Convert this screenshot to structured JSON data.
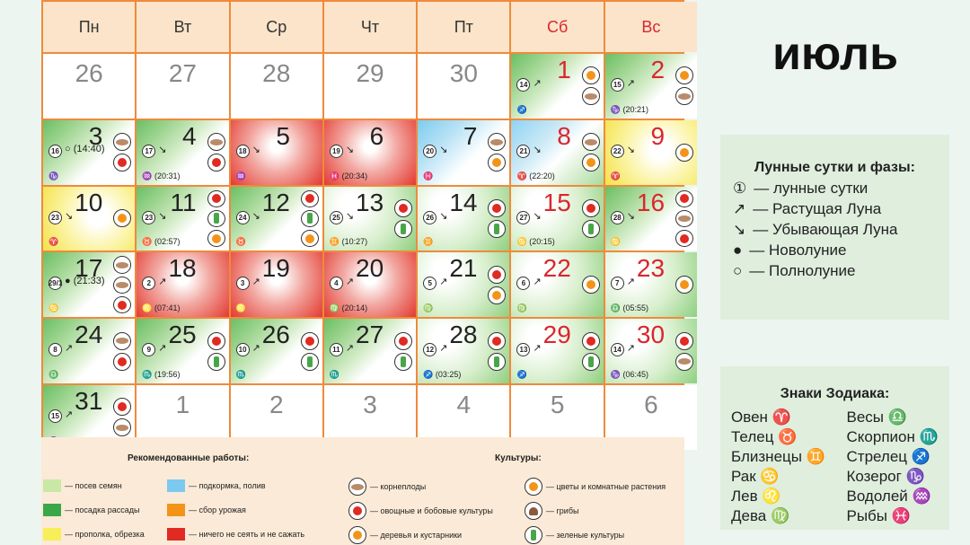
{
  "header": [
    "Пн",
    "Вт",
    "Ср",
    "Чт",
    "Пт",
    "Сб",
    "Вс"
  ],
  "month_title": "июль",
  "cells": [
    {
      "day": "26",
      "plain": true
    },
    {
      "day": "27",
      "plain": true
    },
    {
      "day": "28",
      "plain": true
    },
    {
      "day": "29",
      "plain": true
    },
    {
      "day": "30",
      "plain": true
    },
    {
      "day": "1",
      "we": true,
      "bg": "g-ltr",
      "lday": "14",
      "phase": "↗",
      "sign": "♐",
      "icons": [
        "flower",
        "root"
      ]
    },
    {
      "day": "2",
      "we": true,
      "bg": "g-ltr",
      "lday": "15",
      "phase": "↗",
      "sign": "♑ (20:21)",
      "icons": [
        "flower",
        "root"
      ]
    },
    {
      "day": "3",
      "bg": "g-ltr",
      "lday": "16",
      "phase": "○ (14:40)",
      "sign": "♑",
      "icons": [
        "root",
        "tomato"
      ]
    },
    {
      "day": "4",
      "bg": "g-ltr",
      "lday": "17",
      "phase": "↘",
      "sign": "♒ (20:31)",
      "icons": [
        "root",
        "tomato"
      ]
    },
    {
      "day": "5",
      "bg": "g-red",
      "lday": "18",
      "phase": "↘",
      "sign": "♒",
      "icons": []
    },
    {
      "day": "6",
      "bg": "g-red",
      "lday": "19",
      "phase": "↘",
      "sign": "♓ (20:34)",
      "icons": []
    },
    {
      "day": "7",
      "bg": "g-blue",
      "lday": "20",
      "phase": "↘",
      "sign": "♓",
      "icons": [
        "root",
        "flower"
      ]
    },
    {
      "day": "8",
      "we": true,
      "bg": "g-blue2",
      "lday": "21",
      "phase": "↘",
      "sign": "♈ (22:20)",
      "icons": [
        "root",
        "flower"
      ]
    },
    {
      "day": "9",
      "we": true,
      "bg": "g-yel",
      "lday": "22",
      "phase": "↘",
      "sign": "♈",
      "icons": [
        "flower"
      ]
    },
    {
      "day": "10",
      "bg": "g-yel",
      "lday": "23",
      "phase": "↘",
      "sign": "♈",
      "icons": [
        "flower"
      ]
    },
    {
      "day": "11",
      "bg": "g-ltr",
      "lday": "23",
      "phase": "↘",
      "sign": "♉ (02:57)",
      "icons": [
        "tomato",
        "greens",
        "flower"
      ]
    },
    {
      "day": "12",
      "bg": "g-ltr",
      "lday": "24",
      "phase": "↘",
      "sign": "♉",
      "icons": [
        "tomato",
        "greens",
        "flower"
      ]
    },
    {
      "day": "13",
      "bg": "g-lg",
      "lday": "25",
      "phase": "↘",
      "sign": "♊ (10:27)",
      "icons": [
        "tomato",
        "greens"
      ]
    },
    {
      "day": "14",
      "bg": "g-lg",
      "lday": "26",
      "phase": "↘",
      "sign": "♊",
      "icons": [
        "tomato",
        "greens"
      ]
    },
    {
      "day": "15",
      "we": true,
      "bg": "g-lg",
      "lday": "27",
      "phase": "↘",
      "sign": "♋ (20:15)",
      "icons": [
        "tomato",
        "greens"
      ]
    },
    {
      "day": "16",
      "we": true,
      "bg": "g-ltr",
      "lday": "28",
      "phase": "↘",
      "sign": "♋",
      "icons": [
        "tomato",
        "root",
        "tomato"
      ]
    },
    {
      "day": "17",
      "bg": "g-ltr",
      "lday": "29/1",
      "phase": "● (21:33)",
      "sign": "♋",
      "icons": [
        "root",
        "root",
        "tomato"
      ]
    },
    {
      "day": "18",
      "bg": "g-red",
      "lday": "2",
      "phase": "↗",
      "sign": "♌ (07:41)",
      "icons": []
    },
    {
      "day": "19",
      "bg": "g-red",
      "lday": "3",
      "phase": "↗",
      "sign": "♌",
      "icons": []
    },
    {
      "day": "20",
      "bg": "g-red",
      "lday": "4",
      "phase": "↗",
      "sign": "♍ (20:14)",
      "icons": []
    },
    {
      "day": "21",
      "bg": "g-lg",
      "lday": "5",
      "phase": "↗",
      "sign": "♍",
      "icons": [
        "tomato",
        "flower"
      ]
    },
    {
      "day": "22",
      "we": true,
      "bg": "g-lg",
      "lday": "6",
      "phase": "↗",
      "sign": "♍",
      "icons": [
        "flower"
      ]
    },
    {
      "day": "23",
      "we": true,
      "bg": "g-lg",
      "lday": "7",
      "phase": "↗",
      "sign": "♎ (05:55)",
      "icons": [
        "flower"
      ]
    },
    {
      "day": "24",
      "bg": "g-ltr",
      "lday": "8",
      "phase": "↗",
      "sign": "♎",
      "icons": [
        "root",
        "tomato"
      ]
    },
    {
      "day": "25",
      "bg": "g-ltr",
      "lday": "9",
      "phase": "↗",
      "sign": "♏ (19:56)",
      "icons": [
        "tomato",
        "greens"
      ]
    },
    {
      "day": "26",
      "bg": "g-ltr",
      "lday": "10",
      "phase": "↗",
      "sign": "♏",
      "icons": [
        "tomato",
        "greens"
      ]
    },
    {
      "day": "27",
      "bg": "g-ltr",
      "lday": "11",
      "phase": "↗",
      "sign": "♏",
      "icons": [
        "tomato",
        "greens"
      ]
    },
    {
      "day": "28",
      "bg": "g-lg",
      "lday": "12",
      "phase": "↗",
      "sign": "♐ (03:25)",
      "icons": [
        "tomato",
        "greens"
      ]
    },
    {
      "day": "29",
      "we": true,
      "bg": "g-lg",
      "lday": "13",
      "phase": "↗",
      "sign": "♐",
      "icons": [
        "tomato",
        "greens"
      ]
    },
    {
      "day": "30",
      "we": true,
      "bg": "g-lg",
      "lday": "14",
      "phase": "↗",
      "sign": "♑ (06:45)",
      "icons": [
        "tomato",
        "root"
      ]
    },
    {
      "day": "31",
      "bg": "g-ltr",
      "lday": "15",
      "phase": "↗",
      "sign": "♑",
      "icons": [
        "tomato",
        "root"
      ]
    },
    {
      "day": "1",
      "plain": true
    },
    {
      "day": "2",
      "plain": true
    },
    {
      "day": "3",
      "plain": true
    },
    {
      "day": "4",
      "plain": true
    },
    {
      "day": "5",
      "plain": true
    },
    {
      "day": "6",
      "plain": true
    }
  ],
  "legend": {
    "works_title": "Рекомендованные работы:",
    "crops_title": "Культуры:",
    "works": [
      {
        "color": "#c8e8a6",
        "text": "— посев семян"
      },
      {
        "color": "#3aa84a",
        "text": "— посадка рассады"
      },
      {
        "color": "#f6ef5a",
        "text": "— прополка, обрезка"
      },
      {
        "color": "#7cc9ef",
        "text": "— подкормка, полив"
      },
      {
        "color": "#f39419",
        "text": "— сбор урожая"
      },
      {
        "color": "#e02a22",
        "text": "— ничего не сеять и не сажать"
      }
    ],
    "crops": [
      {
        "icon": "root",
        "text": "— корнеплоды"
      },
      {
        "icon": "tomato",
        "text": "— овощные и бобовые культуры"
      },
      {
        "icon": "flower",
        "text": "— деревья и кустарники"
      },
      {
        "icon": "flower",
        "text": "— цветы и комнатные растения"
      },
      {
        "icon": "mush",
        "text": "— грибы"
      },
      {
        "icon": "greens",
        "text": "— зеленые культуры"
      }
    ]
  },
  "moon_box": {
    "title": "Лунные сутки и фазы:",
    "rows": [
      {
        "sym": "①",
        "text": "— лунные сутки"
      },
      {
        "sym": "↗",
        "text": "— Растущая Луна"
      },
      {
        "sym": "↘",
        "text": "— Убывающая Луна"
      },
      {
        "sym": "●",
        "text": "— Новолуние"
      },
      {
        "sym": "○",
        "text": "— Полнолуние"
      }
    ]
  },
  "zodiac_box": {
    "title": "Знаки Зодиака:",
    "items": [
      "Овен ♈",
      "Весы ♎",
      "Телец ♉",
      "Скорпион ♏",
      "Близнецы ♊",
      "Стрелец ♐",
      "Рак ♋",
      "Козерог ♑",
      "Лев ♌",
      "Водолей ♒",
      "Дева ♍",
      "Рыбы ♓"
    ]
  }
}
